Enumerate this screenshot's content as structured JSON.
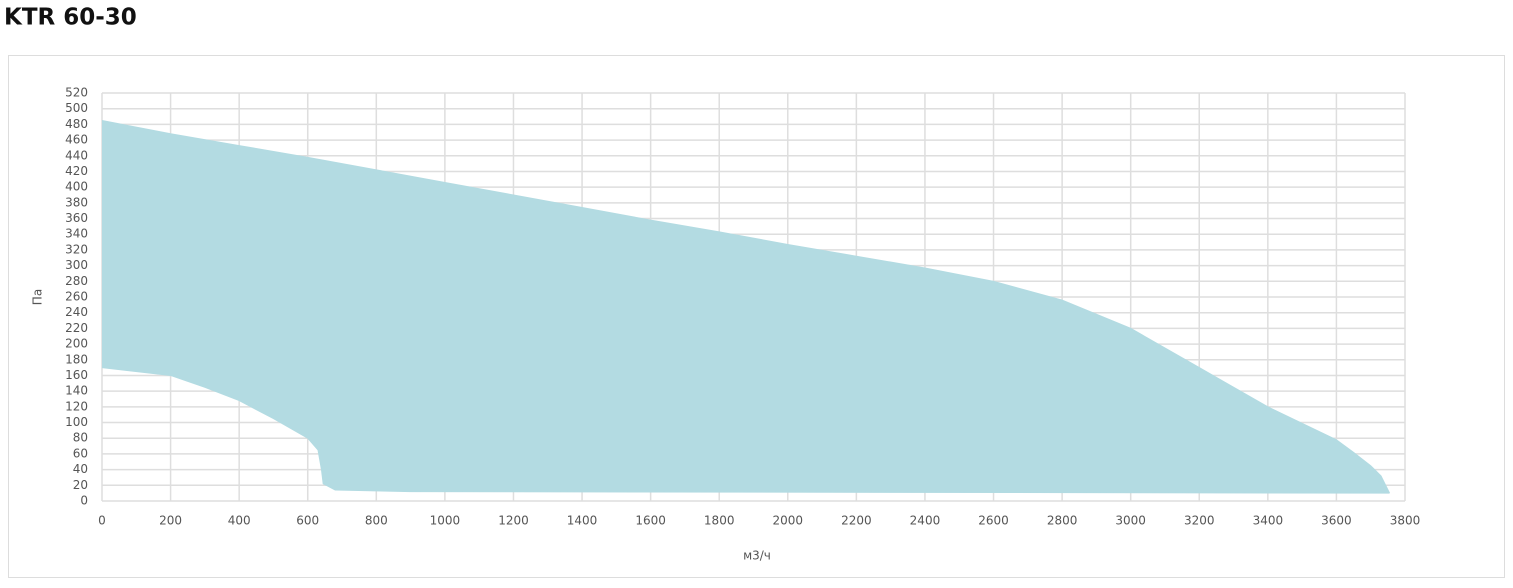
{
  "chart_data": {
    "type": "range-area",
    "title": "KTR 60-30",
    "x_label": "м3/ч",
    "y_label": "Па",
    "color": "#b3dbe2",
    "grid": true,
    "series": [
      {
        "x": [
          0,
          200,
          400,
          600,
          800,
          1000,
          1200,
          1400,
          1600,
          1800,
          2000,
          2200,
          2400,
          2600,
          2800,
          3000,
          3200,
          3400,
          3600,
          3650,
          3700,
          3730,
          3755
        ],
        "values": [
          485,
          468,
          453,
          438,
          422,
          406,
          390,
          374,
          358,
          343,
          327,
          312,
          297,
          280,
          256,
          220,
          170,
          120,
          78,
          62,
          45,
          32,
          10
        ]
      },
      {
        "x": [
          0,
          200,
          300,
          400,
          500,
          600,
          630,
          640,
          645,
          680,
          900,
          3755
        ],
        "values": [
          170,
          160,
          145,
          128,
          105,
          80,
          65,
          40,
          22,
          14,
          12,
          10
        ]
      }
    ],
    "xlim": [
      0,
      3800
    ],
    "xticks": [
      0,
      200,
      400,
      600,
      800,
      1000,
      1200,
      1400,
      1600,
      1800,
      2000,
      2200,
      2400,
      2600,
      2800,
      3000,
      3200,
      3400,
      3600,
      3800
    ],
    "ylim": [
      0,
      520
    ],
    "yticks": [
      0,
      20,
      40,
      60,
      80,
      100,
      120,
      140,
      160,
      180,
      200,
      220,
      240,
      260,
      280,
      300,
      320,
      340,
      360,
      380,
      400,
      420,
      440,
      460,
      480,
      500,
      520
    ]
  }
}
